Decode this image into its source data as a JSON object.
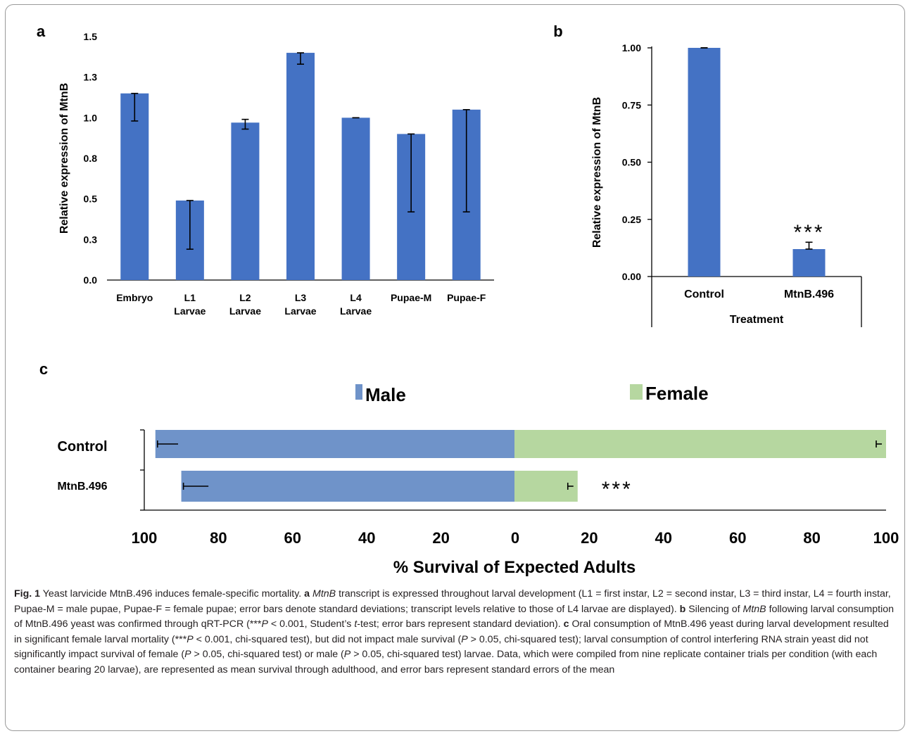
{
  "chart_data": [
    {
      "panel": "a",
      "type": "bar",
      "ylabel": "Relative expression of MtnB",
      "ylim": [
        0,
        1.5
      ],
      "ytick_labels": [
        "0.0",
        "0.3",
        "0.5",
        "0.8",
        "1.0",
        "1.3",
        "1.5"
      ],
      "categories": [
        [
          "Embryo",
          ""
        ],
        [
          "L1",
          "Larvae"
        ],
        [
          "L2",
          "Larvae"
        ],
        [
          "L3",
          "Larvae"
        ],
        [
          "L4",
          "Larvae"
        ],
        [
          "Pupae-M",
          ""
        ],
        [
          "Pupae-F",
          ""
        ]
      ],
      "values": [
        1.15,
        0.49,
        0.97,
        1.4,
        1.0,
        0.9,
        1.05
      ],
      "error_low": [
        0.98,
        0.19,
        0.93,
        1.33,
        1.0,
        0.42,
        0.42
      ],
      "error_high": [
        1.15,
        0.49,
        0.99,
        1.4,
        1.0,
        0.9,
        1.05
      ],
      "bar_color": "#4472c4"
    },
    {
      "panel": "b",
      "type": "bar",
      "ylabel": "Relative expression of MtnB",
      "xlabel": "Treatment",
      "ylim": [
        0,
        1.0
      ],
      "ytick_labels": [
        "0.00",
        "0.25",
        "0.50",
        "0.75",
        "1.00"
      ],
      "categories": [
        "Control",
        "MtnB.496"
      ],
      "values": [
        1.0,
        0.12
      ],
      "error": [
        0.0,
        0.03
      ],
      "annotation": "***",
      "bar_color": "#4472c4"
    },
    {
      "panel": "c",
      "type": "bar",
      "orientation": "horizontal-diverging",
      "xlabel": "% Survival of Expected Adults",
      "xtick_labels": [
        "100",
        "80",
        "60",
        "40",
        "20",
        "0",
        "20",
        "40",
        "60",
        "80",
        "100"
      ],
      "categories": [
        "Control",
        "MtnB.496"
      ],
      "series": [
        {
          "name": "Male",
          "color": "#6f93c9",
          "values": [
            97,
            90
          ],
          "error": [
            1.2,
            1.5
          ]
        },
        {
          "name": "Female",
          "color": "#b6d7a0",
          "values": [
            100,
            17
          ],
          "error": [
            1.0,
            2.0
          ]
        }
      ],
      "annotation": "***",
      "legend": "top"
    }
  ],
  "labels": {
    "a": "a",
    "b": "b",
    "c": "c"
  },
  "caption": {
    "fig": "Fig. 1",
    "segments": [
      {
        "t": "Fig. 1",
        "s": "b"
      },
      {
        "t": "  Yeast larvicide MtnB.496 induces female-specific mortality. "
      },
      {
        "t": "a",
        "s": "b"
      },
      {
        "t": " "
      },
      {
        "t": "MtnB",
        "s": "i"
      },
      {
        "t": " transcript is expressed throughout larval development (L1 = first instar, L2 = second instar, L3 = third instar, L4 = fourth instar, Pupae-M = male pupae, Pupae-F = female pupae; error bars denote standard deviations; transcript levels relative to those of L4 larvae are displayed). "
      },
      {
        "t": "b",
        "s": "b"
      },
      {
        "t": " Silencing of "
      },
      {
        "t": "MtnB",
        "s": "i"
      },
      {
        "t": " following larval consumption of MtnB.496 yeast was confirmed through qRT-PCR (***"
      },
      {
        "t": "P",
        "s": "i"
      },
      {
        "t": " < 0.001, Student’s "
      },
      {
        "t": "t",
        "s": "i"
      },
      {
        "t": "-test; error bars represent standard deviation). "
      },
      {
        "t": "c",
        "s": "b"
      },
      {
        "t": " Oral consumption of MtnB.496 yeast during larval development resulted in significant female larval mortality (***"
      },
      {
        "t": "P",
        "s": "i"
      },
      {
        "t": " < 0.001, chi-squared test), but did not impact male survival ("
      },
      {
        "t": "P",
        "s": "i"
      },
      {
        "t": " > 0.05, chi-squared test); larval consumption of control interfering RNA strain yeast did not significantly impact survival of female ("
      },
      {
        "t": "P",
        "s": "i"
      },
      {
        "t": " > 0.05, chi-squared test) or male ("
      },
      {
        "t": "P",
        "s": "i"
      },
      {
        "t": " > 0.05, chi-squared test) larvae. Data, which were compiled from nine replicate container trials per condition (with each container bearing 20 larvae), are represented as mean survival through adulthood, and error bars represent standard errors of the mean"
      }
    ]
  }
}
